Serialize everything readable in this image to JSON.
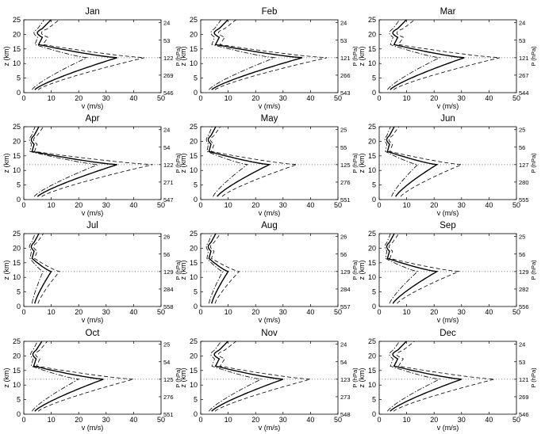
{
  "chart_data": {
    "type": "line",
    "layout": "4x3 small multiples",
    "xlabel": "v (m/s)",
    "ylabel": "z (km)",
    "right_label": "P (hPa)",
    "xlim": [
      0,
      50
    ],
    "ylim": [
      0,
      25
    ],
    "x_ticks": [
      "0",
      "10",
      "20",
      "30",
      "40",
      "50"
    ],
    "y_ticks": [
      "0",
      "5",
      "10",
      "15",
      "20",
      "25"
    ],
    "tropopause_height_km": 12,
    "series_styles": [
      {
        "role": "mean",
        "line": "solid"
      },
      {
        "role": "lower",
        "line": "dash-dot"
      },
      {
        "role": "upper",
        "line": "dashed"
      }
    ],
    "panels": [
      {
        "title": "Jan",
        "p_ticks": [
          "24",
          "53",
          "122",
          "269",
          "546"
        ],
        "mean": 34,
        "lower": 23,
        "upper": 44,
        "base": 4,
        "top": 9
      },
      {
        "title": "Feb",
        "p_ticks": [
          "24",
          "53",
          "121",
          "266",
          "543"
        ],
        "mean": 37,
        "lower": 27,
        "upper": 46,
        "base": 4,
        "top": 9
      },
      {
        "title": "Mar",
        "p_ticks": [
          "24",
          "53",
          "121",
          "267",
          "544"
        ],
        "mean": 31,
        "lower": 22,
        "upper": 44,
        "base": 4,
        "top": 9
      },
      {
        "title": "Apr",
        "p_ticks": [
          "24",
          "54",
          "122",
          "271",
          "547"
        ],
        "mean": 34,
        "lower": 27,
        "upper": 47,
        "base": 5,
        "top": 5
      },
      {
        "title": "May",
        "p_ticks": [
          "25",
          "55",
          "125",
          "276",
          "551"
        ],
        "mean": 25,
        "lower": 17,
        "upper": 35,
        "base": 6,
        "top": 5
      },
      {
        "title": "Jun",
        "p_ticks": [
          "25",
          "56",
          "127",
          "280",
          "555"
        ],
        "mean": 21,
        "lower": 14,
        "upper": 30,
        "base": 6,
        "top": 5
      },
      {
        "title": "Jul",
        "p_ticks": [
          "26",
          "56",
          "129",
          "284",
          "558"
        ],
        "mean": 10,
        "lower": 7,
        "upper": 13,
        "base": 4,
        "top": 5
      },
      {
        "title": "Aug",
        "p_ticks": [
          "26",
          "56",
          "129",
          "284",
          "557"
        ],
        "mean": 10,
        "lower": 8,
        "upper": 14,
        "base": 4,
        "top": 5
      },
      {
        "title": "Sep",
        "p_ticks": [
          "25",
          "56",
          "129",
          "282",
          "556"
        ],
        "mean": 21,
        "lower": 14,
        "upper": 29,
        "base": 5,
        "top": 5
      },
      {
        "title": "Oct",
        "p_ticks": [
          "25",
          "54",
          "125",
          "276",
          "551"
        ],
        "mean": 29,
        "lower": 20,
        "upper": 40,
        "base": 4,
        "top": 6
      },
      {
        "title": "Nov",
        "p_ticks": [
          "24",
          "54",
          "123",
          "273",
          "548"
        ],
        "mean": 30,
        "lower": 22,
        "upper": 40,
        "base": 4,
        "top": 9
      },
      {
        "title": "Dec",
        "p_ticks": [
          "24",
          "53",
          "121",
          "269",
          "546"
        ],
        "mean": 30,
        "lower": 22,
        "upper": 42,
        "base": 4,
        "top": 9
      }
    ]
  }
}
